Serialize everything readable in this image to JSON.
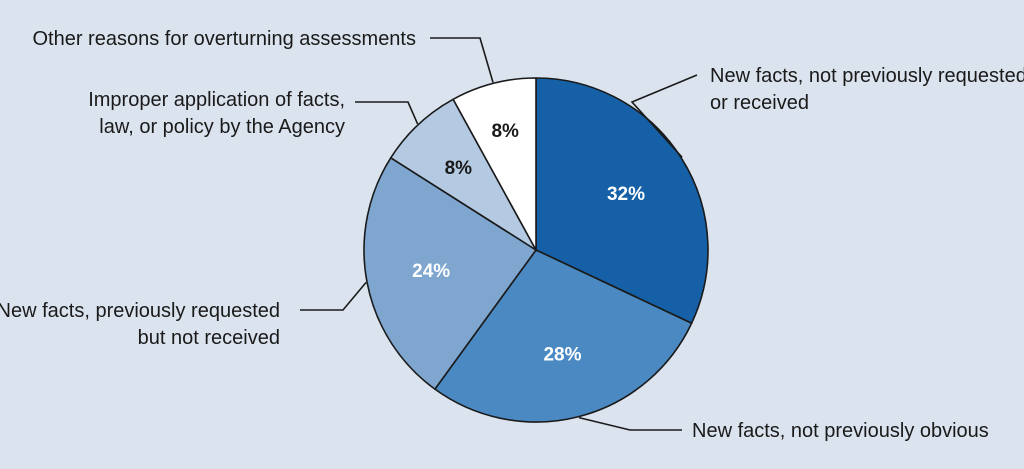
{
  "chart_data": {
    "type": "pie",
    "start": "12 o'clock",
    "direction": "clockwise",
    "slices": [
      {
        "label_lines": [
          "New facts, not previously requested",
          "or received"
        ],
        "value": 32,
        "value_label": "32%",
        "color": "#1560a6",
        "text_color": "#ffffff"
      },
      {
        "label_lines": [
          "New facts, not previously obvious"
        ],
        "value": 28,
        "value_label": "28%",
        "color": "#4a89c1",
        "text_color": "#ffffff"
      },
      {
        "label_lines": [
          "New facts, previously requested",
          "but not received"
        ],
        "value": 24,
        "value_label": "24%",
        "color": "#7ea6cf",
        "text_color": "#ffffff"
      },
      {
        "label_lines": [
          "Improper application of facts,",
          "law, or policy by the Agency"
        ],
        "value": 8,
        "value_label": "8%",
        "color": "#b4cae2",
        "text_color": "#1a1a1a"
      },
      {
        "label_lines": [
          "Other reasons for overturning assessments"
        ],
        "value": 8,
        "value_label": "8%",
        "color": "#ffffff",
        "text_color": "#1a1a1a"
      }
    ]
  }
}
